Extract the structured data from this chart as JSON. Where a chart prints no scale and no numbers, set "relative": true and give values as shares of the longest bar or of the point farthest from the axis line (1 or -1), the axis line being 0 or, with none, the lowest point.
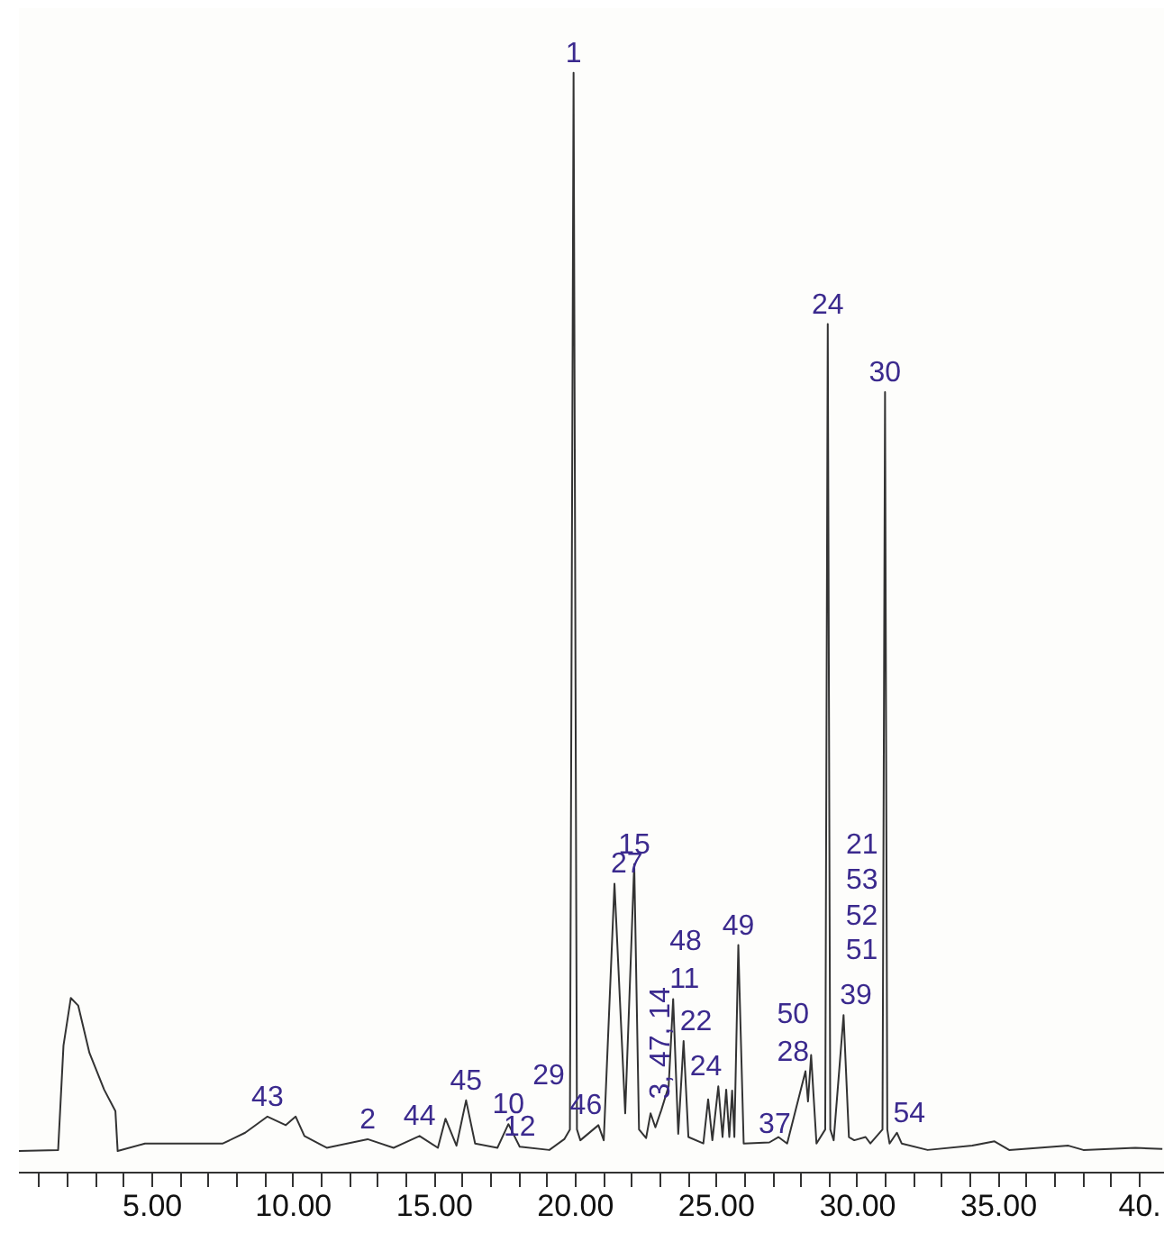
{
  "chart_data": {
    "type": "line",
    "relative": true,
    "color": "#333333",
    "x": [
      0.27,
      1.66,
      1.85,
      2.11,
      2.37,
      2.77,
      3.29,
      3.69,
      3.77,
      4.74,
      7.5,
      8.29,
      9.08,
      9.73,
      10.08,
      10.39,
      11.18,
      12.63,
      13.55,
      14.47,
      15.12,
      15.39,
      15.78,
      16.12,
      16.44,
      17.23,
      17.62,
      18.02,
      19.07,
      19.6,
      19.8,
      19.93,
      20.05,
      20.17,
      20.81,
      21.0,
      21.38,
      21.76,
      22.08,
      22.25,
      22.5,
      22.66,
      22.83,
      23.04,
      23.3,
      23.46,
      23.64,
      23.83,
      24.0,
      24.53,
      24.7,
      24.85,
      25.06,
      25.21,
      25.34,
      25.45,
      25.55,
      25.63,
      25.77,
      25.96,
      26.87,
      27.19,
      27.5,
      28.15,
      28.24,
      28.35,
      28.54,
      28.85,
      28.94,
      29.03,
      29.15,
      29.5,
      29.69,
      29.88,
      30.28,
      30.45,
      30.88,
      30.97,
      31.05,
      31.13,
      31.39,
      31.56,
      32.48,
      34.06,
      34.85,
      35.37,
      37.47,
      38.0,
      39.84,
      40.8
    ],
    "values": [
      0,
      0.001,
      0.098,
      0.142,
      0.135,
      0.091,
      0.057,
      0.037,
      0,
      0.007,
      0.007,
      0.017,
      0.032,
      0.024,
      0.032,
      0.014,
      0.003,
      0.011,
      0.003,
      0.014,
      0.003,
      0.03,
      0.005,
      0.047,
      0.007,
      0.003,
      0.025,
      0.004,
      0.001,
      0.011,
      0.02,
      1,
      0.02,
      0.01,
      0.024,
      0.01,
      0.248,
      0.035,
      0.266,
      0.02,
      0.012,
      0.035,
      0.022,
      0.038,
      0.06,
      0.141,
      0.016,
      0.102,
      0.013,
      0.007,
      0.048,
      0.01,
      0.06,
      0.013,
      0.057,
      0.013,
      0.056,
      0.013,
      0.191,
      0.007,
      0.008,
      0.013,
      0.007,
      0.074,
      0.046,
      0.089,
      0.007,
      0.02,
      0.767,
      0.02,
      0.01,
      0.126,
      0.013,
      0.01,
      0.013,
      0.007,
      0.02,
      0.704,
      0.02,
      0.007,
      0.017,
      0.007,
      0.001,
      0.005,
      0.009,
      0.001,
      0.005,
      0.001,
      0.003,
      0.002
    ],
    "xlim": [
      0.27,
      40.89
    ],
    "xticks": [
      {
        "value": 1,
        "label": null
      },
      {
        "value": 2,
        "label": null
      },
      {
        "value": 3,
        "label": null
      },
      {
        "value": 4,
        "label": null
      },
      {
        "value": 5,
        "label": "5.00"
      },
      {
        "value": 6,
        "label": null
      },
      {
        "value": 7,
        "label": null
      },
      {
        "value": 8,
        "label": null
      },
      {
        "value": 9,
        "label": null
      },
      {
        "value": 10,
        "label": "10.00"
      },
      {
        "value": 11,
        "label": null
      },
      {
        "value": 12,
        "label": null
      },
      {
        "value": 13,
        "label": null
      },
      {
        "value": 14,
        "label": null
      },
      {
        "value": 15,
        "label": "15.00"
      },
      {
        "value": 16,
        "label": null
      },
      {
        "value": 17,
        "label": null
      },
      {
        "value": 18,
        "label": null
      },
      {
        "value": 19,
        "label": null
      },
      {
        "value": 20,
        "label": "20.00"
      },
      {
        "value": 21,
        "label": null
      },
      {
        "value": 22,
        "label": null
      },
      {
        "value": 23,
        "label": null
      },
      {
        "value": 24,
        "label": null
      },
      {
        "value": 25,
        "label": "25.00"
      },
      {
        "value": 26,
        "label": null
      },
      {
        "value": 27,
        "label": null
      },
      {
        "value": 28,
        "label": null
      },
      {
        "value": 29,
        "label": null
      },
      {
        "value": 30,
        "label": "30.00"
      },
      {
        "value": 31,
        "label": null
      },
      {
        "value": 32,
        "label": null
      },
      {
        "value": 33,
        "label": null
      },
      {
        "value": 34,
        "label": null
      },
      {
        "value": 35,
        "label": "35.00"
      },
      {
        "value": 36,
        "label": null
      },
      {
        "value": 37,
        "label": null
      },
      {
        "value": 38,
        "label": null
      },
      {
        "value": 39,
        "label": null
      },
      {
        "value": 40,
        "label": "40."
      }
    ],
    "annotations": [
      {
        "text": "1",
        "x": 19.93,
        "y": 1
      },
      {
        "text": "24",
        "x": 28.94,
        "y": 0.767
      },
      {
        "text": "30",
        "x": 30.97,
        "y": 0.704
      },
      {
        "text": "15",
        "x": 22.08,
        "y": 0.266
      },
      {
        "text": "27",
        "x": 21.38,
        "y": 0.248
      },
      {
        "text": "11",
        "x": 23.46,
        "y": 0.141
      },
      {
        "text": "48",
        "x": 23.46,
        "y": 0.141
      },
      {
        "text": "3, 47, 14",
        "x": 23.04,
        "y": 0.038
      },
      {
        "text": "22",
        "x": 23.83,
        "y": 0.102
      },
      {
        "text": "49",
        "x": 25.77,
        "y": 0.191
      },
      {
        "text": "24",
        "x": 25.06,
        "y": 0.06
      },
      {
        "text": "28",
        "x": 28.15,
        "y": 0.074
      },
      {
        "text": "50",
        "x": 28.15,
        "y": 0.074
      },
      {
        "text": "37",
        "x": 27.5,
        "y": 0.007
      },
      {
        "text": "39",
        "x": 29.5,
        "y": 0.126
      },
      {
        "text": "51",
        "x": 30.902,
        "y": 0.188
      },
      {
        "text": "52",
        "x": 30.906,
        "y": 0.22
      },
      {
        "text": "53",
        "x": 30.911,
        "y": 0.253
      },
      {
        "text": "21",
        "x": 30.915,
        "y": 0.286
      },
      {
        "text": "54",
        "x": 31.39,
        "y": 0.017
      },
      {
        "text": "29",
        "x": 19.807,
        "y": 0.072
      },
      {
        "text": "46",
        "x": 20.81,
        "y": 0.024
      },
      {
        "text": "12",
        "x": 18.02,
        "y": 0.004
      },
      {
        "text": "10",
        "x": 17.62,
        "y": 0.025
      },
      {
        "text": "45",
        "x": 16.12,
        "y": 0.047
      },
      {
        "text": "44",
        "x": 14.47,
        "y": 0.014
      },
      {
        "text": "2",
        "x": 12.63,
        "y": 0.011
      },
      {
        "text": "43",
        "x": 9.08,
        "y": 0.032
      }
    ]
  }
}
